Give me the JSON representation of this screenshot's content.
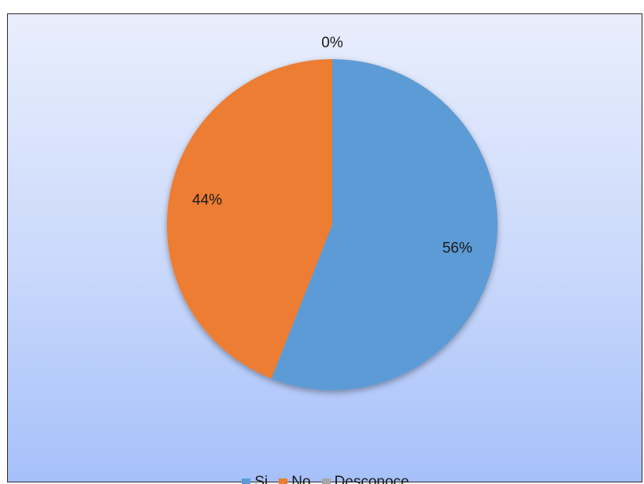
{
  "chart_data": {
    "type": "pie",
    "title": "",
    "categories": [
      "Si",
      "No",
      "Desconoce"
    ],
    "values": [
      56,
      44,
      0
    ],
    "labels": [
      "56%",
      "44%",
      "0%"
    ],
    "colors": [
      "#5b9bd5",
      "#ed7d31",
      "#a5a5a5"
    ],
    "legend_position": "bottom",
    "start_angle": "12 o'clock, clockwise"
  }
}
